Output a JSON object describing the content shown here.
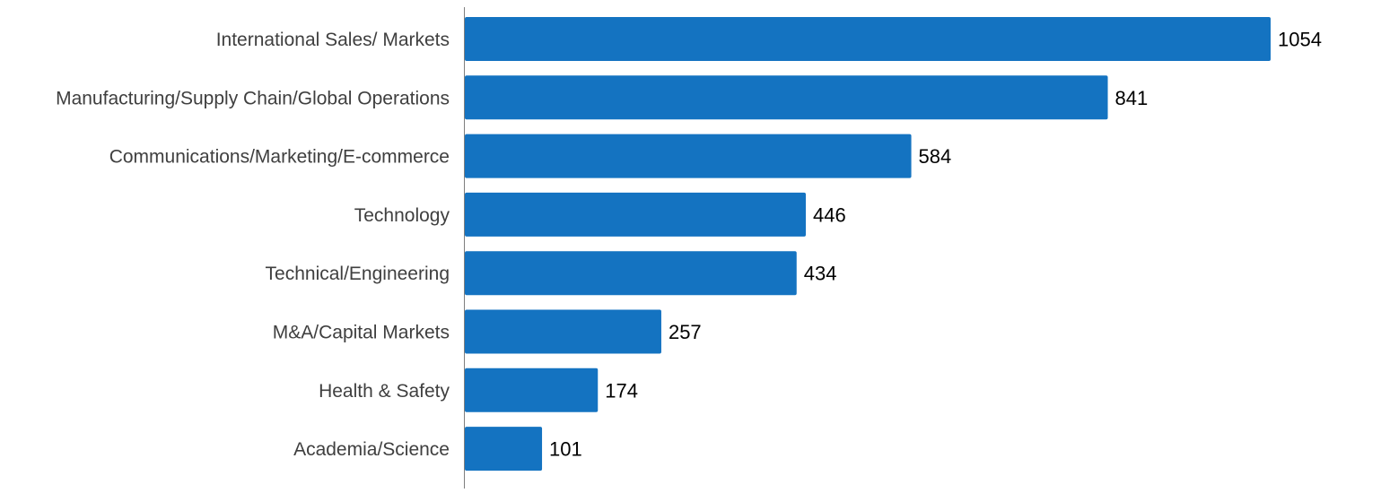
{
  "chart_data": {
    "type": "bar",
    "orientation": "horizontal",
    "categories": [
      "International Sales/ Markets",
      "Manufacturing/Supply Chain/Global Operations",
      "Communications/Marketing/E-commerce",
      "Technology",
      "Technical/Engineering",
      "M&A/Capital Markets",
      "Health & Safety",
      "Academia/Science"
    ],
    "values": [
      1054,
      841,
      584,
      446,
      434,
      257,
      174,
      101
    ],
    "data_labels": [
      "1054",
      "841",
      "584",
      "446",
      "434",
      "257",
      "174",
      "101"
    ],
    "title": "",
    "xlabel": "",
    "ylabel": "",
    "xlim": [
      0,
      1054
    ],
    "grid": false,
    "legend": "none",
    "bar_color": "#1473c1"
  }
}
